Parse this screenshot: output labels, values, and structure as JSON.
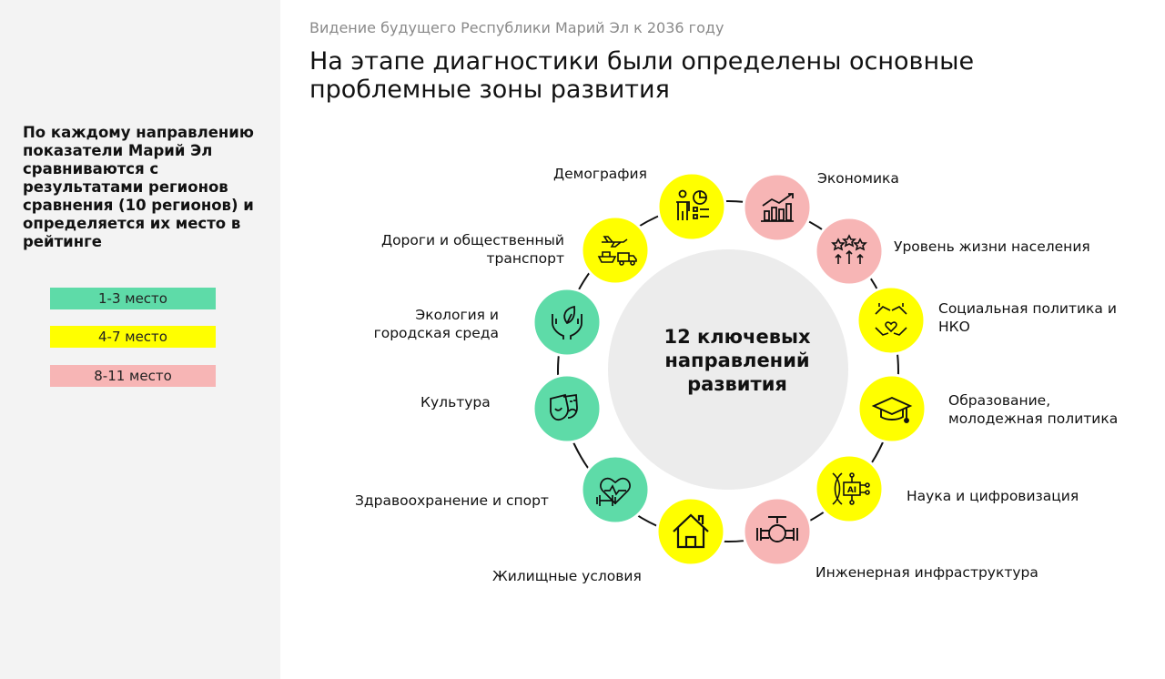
{
  "sidebar": {
    "description": "По каждому направлению показатели Марий Эл сравниваются с результатами регионов сравнения (10 регионов) и определяется их место в рейтинге",
    "legend": [
      {
        "label": "1-3 место",
        "color": "#5edba8"
      },
      {
        "label": "4-7 место",
        "color": "#ffff00"
      },
      {
        "label": "8-11 место",
        "color": "#f7b5b5"
      }
    ]
  },
  "header": {
    "subtitle": "Видение будущего Республики Марий Эл к 2036 году",
    "title": "На этапе диагностики были определены основные проблемные зоны развития"
  },
  "center": {
    "label": "12 ключевых направлений развития"
  },
  "directions": [
    {
      "label": "Демография",
      "rank_group": "4-7 место",
      "icon": "demography-icon"
    },
    {
      "label": "Экономика",
      "rank_group": "8-11 место",
      "icon": "economy-chart-icon"
    },
    {
      "label": "Уровень жизни населения",
      "rank_group": "8-11 место",
      "icon": "living-standard-icon"
    },
    {
      "label": "Социальная политика и НКО",
      "rank_group": "4-7 место",
      "icon": "handshake-icon"
    },
    {
      "label": "Образование, молодежная политика",
      "rank_group": "4-7 место",
      "icon": "graduation-cap-icon"
    },
    {
      "label": "Наука и цифровизация",
      "rank_group": "4-7 место",
      "icon": "ai-dna-icon"
    },
    {
      "label": "Инженерная инфраструктура",
      "rank_group": "8-11 место",
      "icon": "pipe-valve-icon"
    },
    {
      "label": "Жилищные условия",
      "rank_group": "4-7 место",
      "icon": "house-icon"
    },
    {
      "label": "Здравоохранение и спорт",
      "rank_group": "1-3 место",
      "icon": "heart-dumbbell-icon"
    },
    {
      "label": "Культура",
      "rank_group": "1-3 место",
      "icon": "theater-masks-icon"
    },
    {
      "label": "Экология и городская среда",
      "rank_group": "1-3 место",
      "icon": "hands-leaf-icon"
    },
    {
      "label": "Дороги и общественный транспорт",
      "rank_group": "4-7 место",
      "icon": "transport-icon"
    }
  ]
}
